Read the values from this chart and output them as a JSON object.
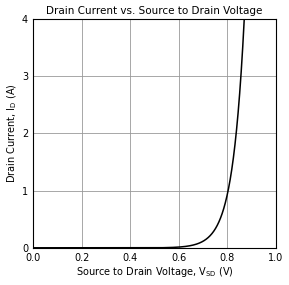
{
  "title": "Drain Current vs. Source to Drain Voltage",
  "xlim": [
    0,
    1.0
  ],
  "ylim": [
    0,
    4
  ],
  "xticks": [
    0,
    0.2,
    0.4,
    0.6,
    0.8,
    1.0
  ],
  "yticks": [
    0,
    1,
    2,
    3,
    4
  ],
  "grid_color": "#999999",
  "line_color": "#000000",
  "background_color": "#ffffff",
  "curve_Vth": 0.5,
  "curve_n": 0.048,
  "curve_scale": 0.0018
}
